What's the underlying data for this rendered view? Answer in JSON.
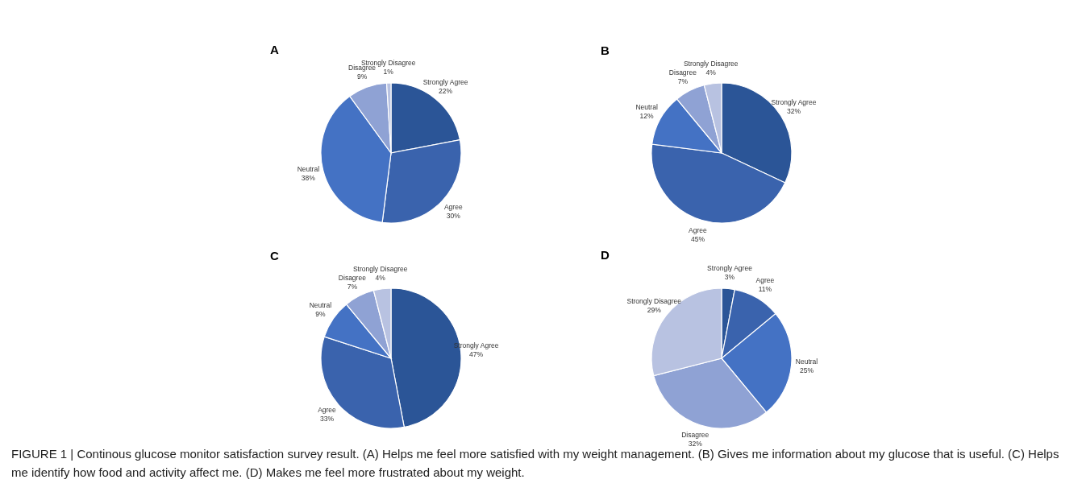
{
  "chart_data": [
    {
      "type": "pie",
      "title": "A",
      "categories": [
        "Strongly Agree",
        "Agree",
        "Neutral",
        "Disagree",
        "Strongly Disagree"
      ],
      "values": [
        22,
        30,
        38,
        9,
        1
      ],
      "value_labels": [
        "22%",
        "30%",
        "38%",
        "9%",
        "1%"
      ],
      "colors": [
        "#2b5597",
        "#3a63ad",
        "#4472c4",
        "#8fa2d4",
        "#b8c2e1"
      ]
    },
    {
      "type": "pie",
      "title": "B",
      "categories": [
        "Strongly Agree",
        "Agree",
        "Neutral",
        "Disagree",
        "Strongly Disagree"
      ],
      "values": [
        32,
        45,
        12,
        7,
        4
      ],
      "value_labels": [
        "32%",
        "45%",
        "12%",
        "7%",
        "4%"
      ],
      "colors": [
        "#2b5597",
        "#3a63ad",
        "#4472c4",
        "#8fa2d4",
        "#b8c2e1"
      ]
    },
    {
      "type": "pie",
      "title": "C",
      "categories": [
        "Strongly Agree",
        "Agree",
        "Neutral",
        "Disagree",
        "Strongly Disagree"
      ],
      "values": [
        47,
        33,
        9,
        7,
        4
      ],
      "value_labels": [
        "47%",
        "33%",
        "9%",
        "7%",
        "4%"
      ],
      "colors": [
        "#2b5597",
        "#3a63ad",
        "#4472c4",
        "#8fa2d4",
        "#b8c2e1"
      ]
    },
    {
      "type": "pie",
      "title": "D",
      "categories": [
        "Strongly Agree",
        "Agree",
        "Neutral",
        "Disagree",
        "Strongly Disagree"
      ],
      "values": [
        3,
        11,
        25,
        32,
        29
      ],
      "value_labels": [
        "3%",
        "11%",
        "25%",
        "32%",
        "29%"
      ],
      "colors": [
        "#2b5597",
        "#3a63ad",
        "#4472c4",
        "#8fa2d4",
        "#b8c2e1"
      ],
      "annotations": [
        "FIGURE 1 | Continous glucose monitor satisfaction survey result. (A) Helps me feel more satisfied with my weight management. (B) Gives me information about my glucose that is useful. (C) Helps me identify how food and activity affect me. (D) Makes me feel more frustrated about my weight."
      ]
    }
  ]
}
